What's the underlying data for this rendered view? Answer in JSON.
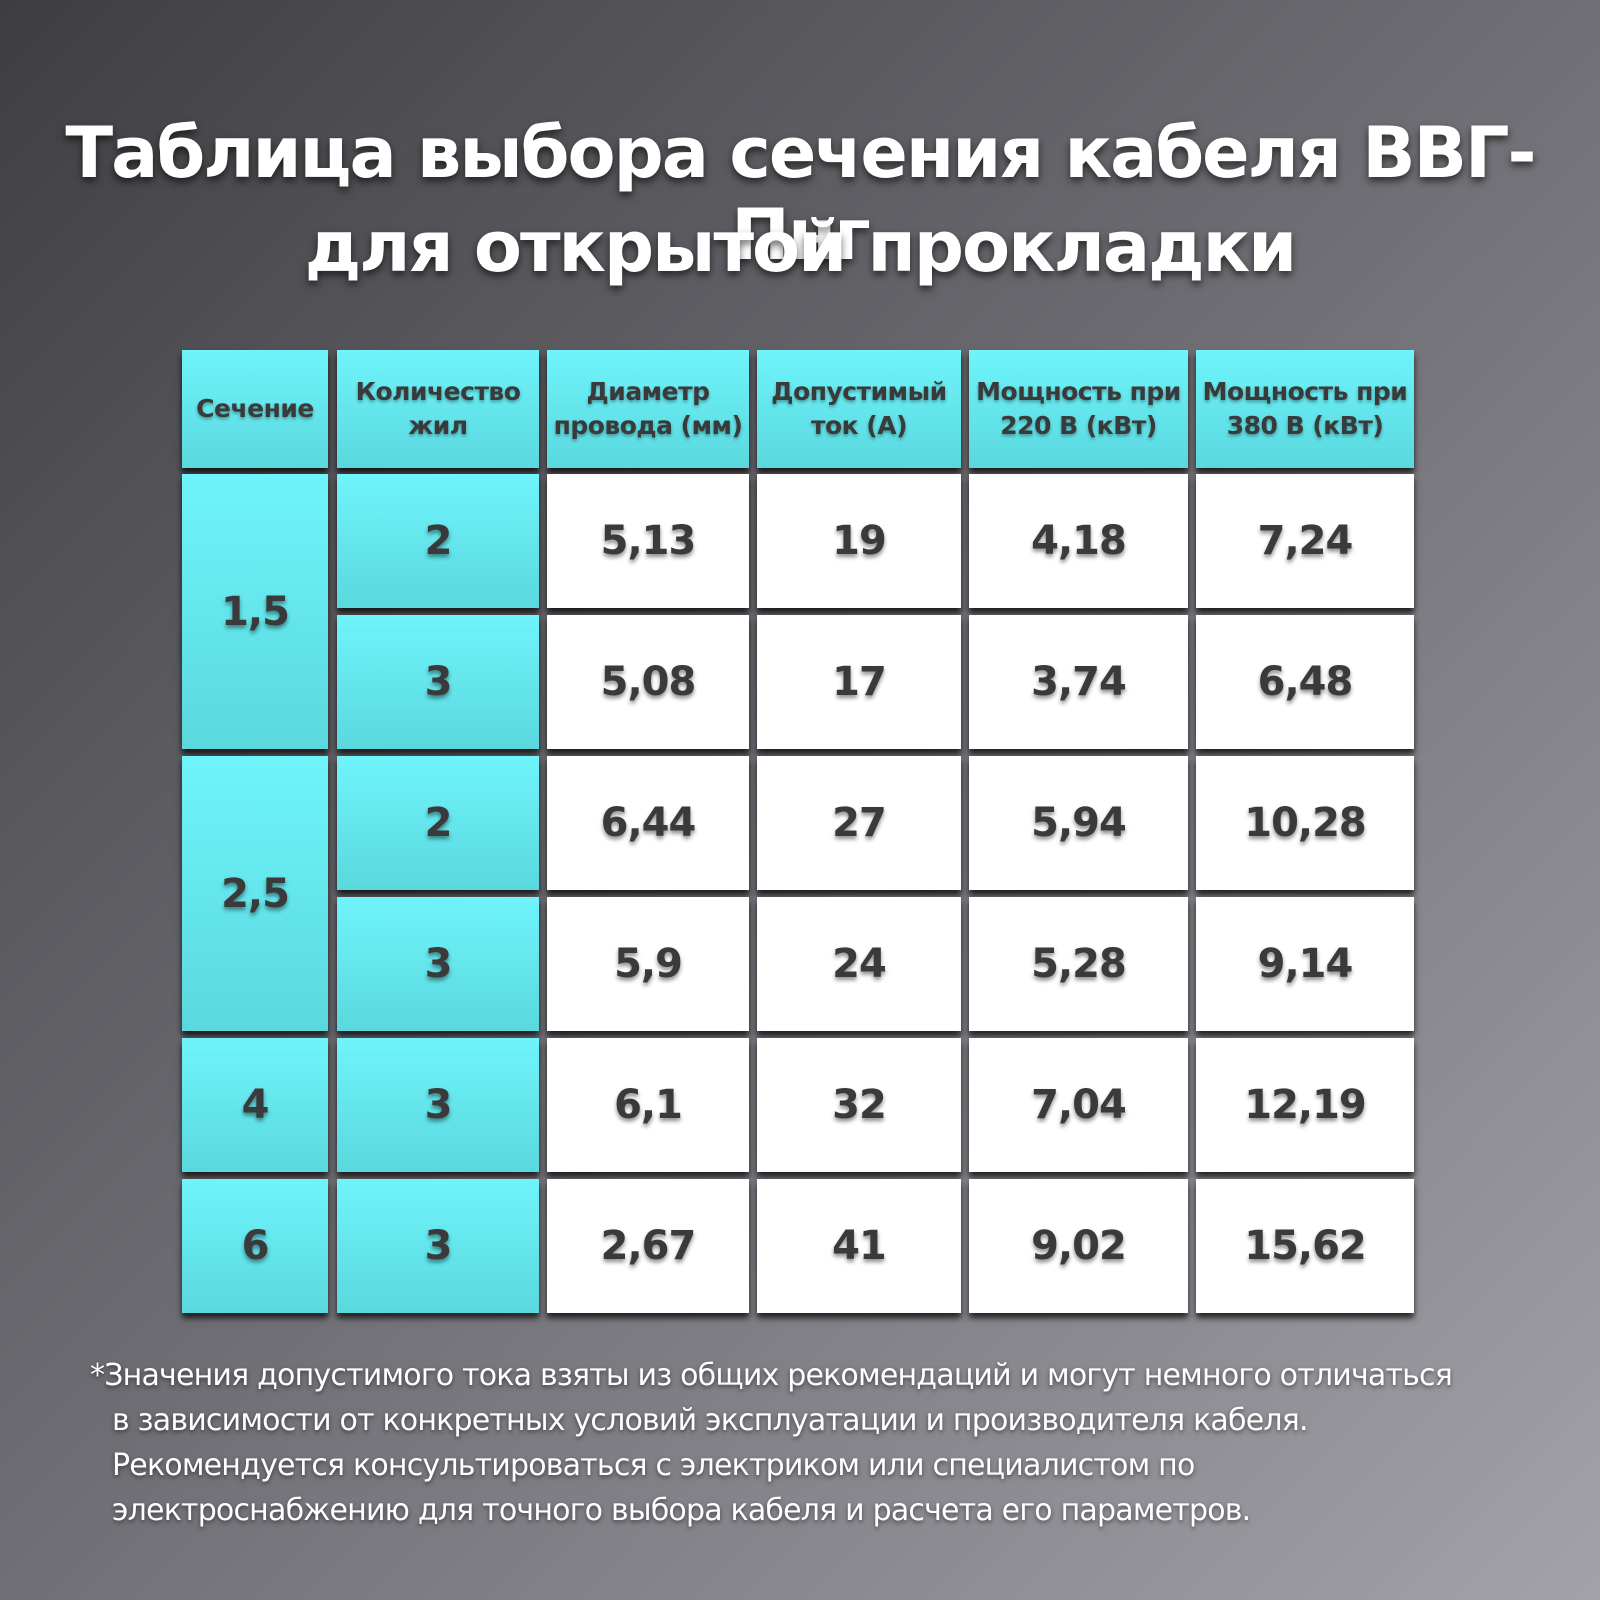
{
  "title": [
    "Таблица выбора сечения кабеля ВВГ-Пнг",
    "для открытой прокладки"
  ],
  "table": {
    "headers": [
      "Сечение",
      "Количество жил",
      "Диаметр провода (мм)",
      "Допустимый ток (А)",
      "Мощность при 220 В (кВт)",
      "Мощность при 380 В (кВт)"
    ],
    "groups": [
      {
        "section": "1,5",
        "rows": [
          [
            "2",
            "5,13",
            "19",
            "4,18",
            "7,24"
          ],
          [
            "3",
            "5,08",
            "17",
            "3,74",
            "6,48"
          ]
        ]
      },
      {
        "section": "2,5",
        "rows": [
          [
            "2",
            "6,44",
            "27",
            "5,94",
            "10,28"
          ],
          [
            "3",
            "5,9",
            "24",
            "5,28",
            "9,14"
          ]
        ]
      },
      {
        "section": "4",
        "rows": [
          [
            "3",
            "6,1",
            "32",
            "7,04",
            "12,19"
          ]
        ]
      },
      {
        "section": "6",
        "rows": [
          [
            "3",
            "2,67",
            "41",
            "9,02",
            "15,62"
          ]
        ]
      }
    ]
  },
  "footnote": [
    "*Значения допустимого тока взяты из общих рекомендаций и могут немного отличаться",
    "в зависимости от конкретных условий эксплуатации и производителя кабеля.",
    "Рекомендуется консультироваться с электриком или специалистом по",
    "электроснабжению для точного выбора кабеля и расчета его параметров."
  ]
}
